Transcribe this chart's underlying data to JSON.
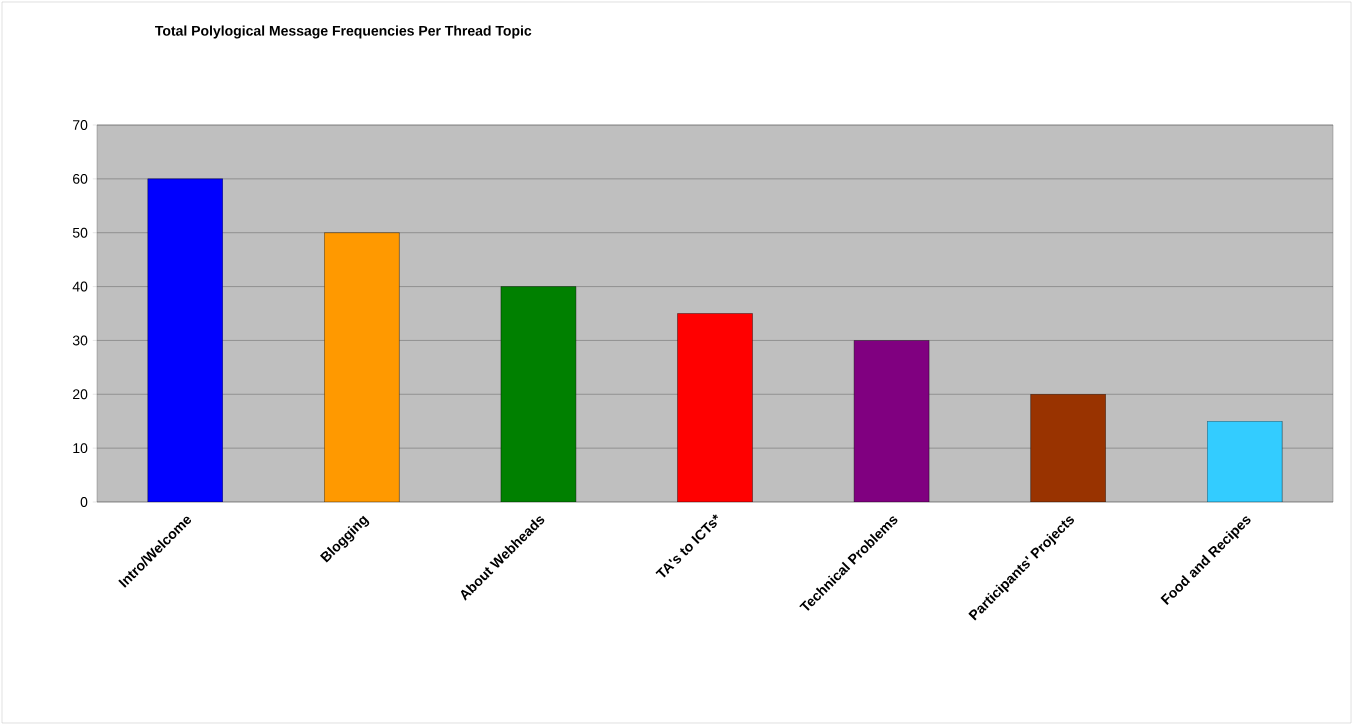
{
  "chart_data": {
    "type": "bar",
    "title": "Total Polylogical Message Frequencies Per Thread Topic",
    "categories": [
      "Intro/Welcome",
      "Blogging",
      "About Webheads",
      "TA's to ICTs*",
      "Technical Problems",
      "Participants' Projects",
      "Food and Recipes"
    ],
    "values": [
      60,
      50,
      40,
      35,
      30,
      20,
      15
    ],
    "colors": [
      "#0000ff",
      "#ff9900",
      "#008000",
      "#ff0000",
      "#800080",
      "#993300",
      "#33ccff"
    ],
    "ylim": [
      0,
      70
    ],
    "yticks": [
      0,
      10,
      20,
      30,
      40,
      50,
      60,
      70
    ],
    "grid": "y"
  }
}
